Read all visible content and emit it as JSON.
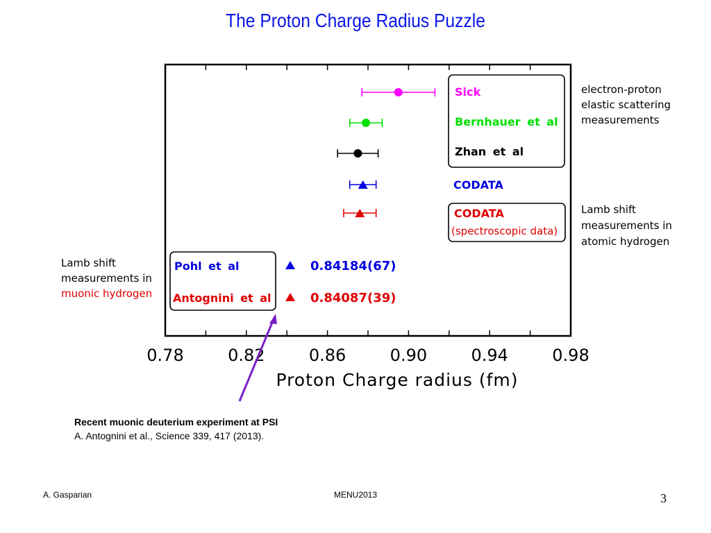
{
  "slide": {
    "title": "The Proton Charge Radius Puzzle",
    "note_line1": "Recent muonic deuterium  experiment at PSI",
    "note_line2": "A. Antognini et al., Science 339, 417 (2013).",
    "footer_left": "A. Gasparian",
    "footer_center": "MENU2013",
    "page_number": "3"
  },
  "chart_data": {
    "type": "scatter",
    "xlabel": "Proton Charge radius (fm)",
    "xlim": [
      0.78,
      0.98
    ],
    "x_ticks": [
      "0.78",
      "0.82",
      "0.86",
      "0.90",
      "0.94",
      "0.98"
    ],
    "grid": false,
    "series": [
      {
        "name": "Sick",
        "marker": "circle",
        "color": "#ff00ff",
        "x": 0.895,
        "xerr_low": 0.018,
        "xerr_high": 0.018
      },
      {
        "name": "Bernhauer et al",
        "marker": "circle",
        "color": "#00e000",
        "x": 0.879,
        "xerr_low": 0.008,
        "xerr_high": 0.008
      },
      {
        "name": "Zhan et al",
        "marker": "circle",
        "color": "#000000",
        "x": 0.875,
        "xerr_low": 0.01,
        "xerr_high": 0.01
      },
      {
        "name": "CODATA",
        "marker": "triangle",
        "color": "#0000e0",
        "x": 0.8775,
        "xerr_low": 0.0065,
        "xerr_high": 0.0065
      },
      {
        "name": "CODATA",
        "marker": "triangle",
        "color": "#e00000",
        "x": 0.876,
        "xerr_low": 0.008,
        "xerr_high": 0.008
      },
      {
        "name": "Pohl et al",
        "marker": "triangle",
        "color": "#0000e0",
        "x": 0.84184,
        "label": "0.84184(67)"
      },
      {
        "name": "Antognini et al",
        "marker": "triangle",
        "color": "#e00000",
        "x": 0.84087,
        "label": "0.84087(39)"
      }
    ],
    "legend_boxes": {
      "electron_scattering": [
        "Sick",
        "Bernhauer et al",
        "Zhan et al"
      ],
      "codata_plain": "CODATA",
      "codata_spectro_line1": "CODATA",
      "codata_spectro_line2": "(spectroscopic data)",
      "muonic": [
        "Pohl et al",
        "Antognini et al"
      ]
    },
    "annotations": {
      "ep_group": [
        "electron-proton",
        "elastic scattering",
        "measurements"
      ],
      "lamb_h_group": [
        "Lamb shift",
        "measurements in",
        "atomic hydrogen"
      ],
      "muonic_group_black": [
        "Lamb shift",
        "measurements in"
      ],
      "muonic_group_red": "muonic hydrogen"
    },
    "colors": {
      "arrow": "#7a1fc8"
    }
  }
}
